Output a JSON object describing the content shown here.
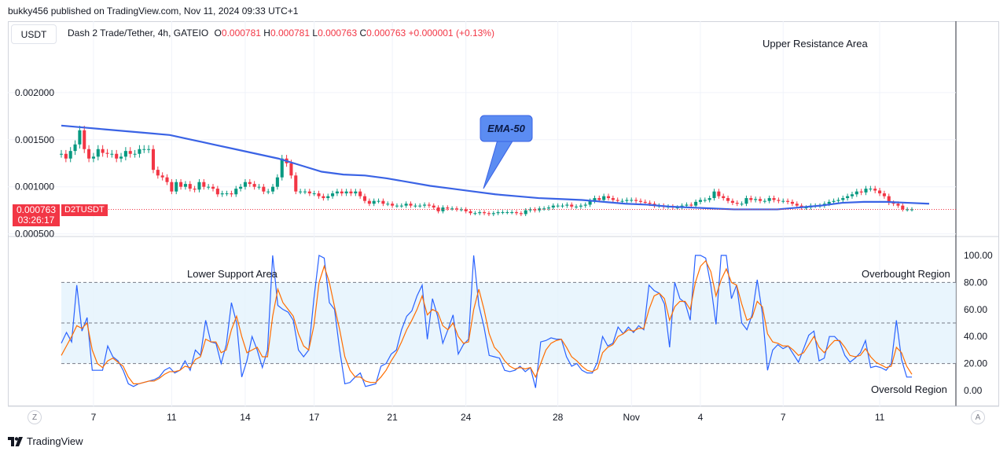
{
  "header": {
    "publish_line": "bukky456 published on TradingView.com, Nov 11, 2024 09:33 UTC+1"
  },
  "toolbar": {
    "currency": "USDT"
  },
  "legend": {
    "symbol": "Dash 2 Trade/Tether, 4h, GATEIO",
    "o_label": "O",
    "o": "0.000781",
    "h_label": "H",
    "h": "0.000781",
    "l_label": "L",
    "l": "0.000763",
    "c_label": "C",
    "c": "0.000763",
    "change": "+0.000001 (+0.13%)"
  },
  "badges": {
    "price": "0.000763",
    "countdown": "03:26:17",
    "ticker": "D2TUSDT"
  },
  "footer": {
    "logo_text": "TradingView",
    "left_btn": "Z",
    "right_btn": "A"
  },
  "colors": {
    "up": "#089981",
    "down": "#f23645",
    "ema": "#3a63e5",
    "osc_fast": "#2962ff",
    "osc_slow": "#ff6d00",
    "band": "#e3f2fd"
  },
  "chart_data": [
    {
      "type": "candlestick",
      "title": "",
      "ylim": [
        0.00048,
        0.00275
      ],
      "y_ticks": [
        0.0005,
        0.001,
        0.0015,
        0.002
      ],
      "y_tick_labels": [
        "0.000500",
        "0.001000",
        "0.001500",
        "0.002000"
      ],
      "x_tick_labels": [
        "7",
        "11",
        "14",
        "17",
        "21",
        "24",
        "28",
        "Nov",
        "4",
        "7",
        "11"
      ],
      "x_tick_index": [
        7,
        24,
        40,
        55,
        72,
        88,
        108,
        124,
        139,
        157,
        178
      ],
      "annotations": [
        "Upper Resistance Area",
        "EMA-50"
      ],
      "close_series": [
        0.00135,
        0.0013,
        0.00138,
        0.00145,
        0.0016,
        0.0014,
        0.0013,
        0.00132,
        0.0014,
        0.00136,
        0.00135,
        0.00135,
        0.0013,
        0.00132,
        0.00138,
        0.00135,
        0.00135,
        0.0014,
        0.0014,
        0.0014,
        0.00118,
        0.00112,
        0.0011,
        0.00105,
        0.00095,
        0.00105,
        0.001,
        0.00103,
        0.00098,
        0.00097,
        0.00105,
        0.001,
        0.001,
        0.00098,
        0.00092,
        0.00093,
        0.00093,
        0.00092,
        0.00098,
        0.001,
        0.00105,
        0.00103,
        0.001,
        0.001,
        0.00095,
        0.00095,
        0.001,
        0.0011,
        0.0013,
        0.00125,
        0.00112,
        0.00095,
        0.00095,
        0.00095,
        0.00093,
        0.00093,
        0.0009,
        0.00088,
        0.0009,
        0.00093,
        0.00095,
        0.00093,
        0.00095,
        0.00093,
        0.00095,
        0.0009,
        0.00085,
        0.00082,
        0.00085,
        0.00085,
        0.00082,
        0.00082,
        0.0008,
        0.0008,
        0.0008,
        0.00082,
        0.0008,
        0.0008,
        0.0008,
        0.00081,
        0.0008,
        0.00078,
        0.00074,
        0.00078,
        0.00077,
        0.00077,
        0.00076,
        0.00076,
        0.00074,
        0.00072,
        0.00072,
        0.00073,
        0.00072,
        0.00071,
        0.00072,
        0.00073,
        0.00073,
        0.00073,
        0.00073,
        0.00072,
        0.00071,
        0.00075,
        0.00076,
        0.00075,
        0.00077,
        0.00077,
        0.00078,
        0.0008,
        0.0008,
        0.0008,
        0.00081,
        0.00079,
        0.00079,
        0.0008,
        0.00081,
        0.00085,
        0.00088,
        0.00086,
        0.0009,
        0.00088,
        0.00086,
        0.00085,
        0.00085,
        0.00086,
        0.00086,
        0.00085,
        0.00084,
        0.00083,
        0.00082,
        0.0008,
        0.0008,
        0.00079,
        0.00079,
        0.00078,
        0.00078,
        0.0008,
        0.00081,
        0.0008,
        0.00084,
        0.00086,
        0.00086,
        0.00088,
        0.00095,
        0.0009,
        0.00088,
        0.00085,
        0.00083,
        0.00082,
        0.00082,
        0.00088,
        0.00086,
        0.00087,
        0.00085,
        0.00085,
        0.00088,
        0.00086,
        0.00085,
        0.00085,
        0.00084,
        0.00082,
        0.0008,
        0.00078,
        0.00078,
        0.0008,
        0.0008,
        0.0008,
        0.00082,
        0.00084,
        0.00085,
        0.00086,
        0.00088,
        0.0009,
        0.00092,
        0.00095,
        0.00094,
        0.00098,
        0.00098,
        0.00096,
        0.00093,
        0.0009,
        0.00083,
        0.00082,
        0.0008,
        0.00076,
        0.00076,
        0.00076
      ],
      "ema_50": [
        0.00165,
        0.00163,
        0.00161,
        0.00159,
        0.00157,
        0.00155,
        0.0015,
        0.00145,
        0.0014,
        0.00135,
        0.0013,
        0.00123,
        0.00116,
        0.00113,
        0.00112,
        0.00109,
        0.00105,
        0.00101,
        0.00098,
        0.00095,
        0.00092,
        0.0009,
        0.00088,
        0.00087,
        0.00086,
        0.00084,
        0.00082,
        0.00081,
        0.00079,
        0.00078,
        0.00077,
        0.00076,
        0.00076,
        0.00076,
        0.00078,
        0.0008,
        0.00083,
        0.00084,
        0.00084,
        0.00083,
        0.00082
      ],
      "ema_label": "EMA-50"
    },
    {
      "type": "line",
      "title": "",
      "ylim": [
        0,
        100
      ],
      "y_ticks": [
        0,
        20,
        40,
        60,
        80,
        100
      ],
      "y_tick_labels": [
        "0.00",
        "20.00",
        "40.00",
        "60.00",
        "80.00",
        "100.00"
      ],
      "band": [
        20,
        80
      ],
      "midline": 50,
      "annotations": [
        "Lower Support Area",
        "Overbought Region",
        "Oversold Region"
      ],
      "series": [
        {
          "values": [
            35,
            43,
            36,
            78,
            44,
            54,
            15,
            15,
            15,
            33,
            25,
            22,
            15,
            5,
            3,
            5,
            6,
            7,
            8,
            10,
            15,
            17,
            13,
            15,
            22,
            15,
            30,
            26,
            52,
            36,
            35,
            20,
            34,
            65,
            50,
            10,
            22,
            40,
            30,
            17,
            30,
            100,
            63,
            60,
            58,
            52,
            30,
            25,
            30,
            68,
            100,
            98,
            65,
            60,
            30,
            5,
            6,
            10,
            13,
            3,
            4,
            5,
            18,
            20,
            27,
            30,
            45,
            55,
            59,
            70,
            78,
            38,
            68,
            55,
            35,
            45,
            56,
            27,
            34,
            38,
            100,
            63,
            47,
            26,
            25,
            24,
            15,
            14,
            15,
            18,
            14,
            17,
            2,
            36,
            37,
            39,
            38,
            38,
            25,
            18,
            20,
            15,
            13,
            13,
            21,
            40,
            33,
            35,
            47,
            42,
            47,
            43,
            48,
            45,
            78,
            74,
            72,
            64,
            32,
            80,
            68,
            65,
            52,
            100,
            100,
            98,
            78,
            49,
            100,
            100,
            68,
            78,
            50,
            45,
            56,
            82,
            57,
            15,
            30,
            34,
            31,
            33,
            27,
            21,
            31,
            41,
            44,
            22,
            24,
            40,
            40,
            36,
            26,
            21,
            24,
            28,
            37,
            17,
            18,
            17,
            15,
            20,
            52,
            23,
            10,
            10
          ],
          "color": "#2962ff"
        },
        {
          "values": [
            26,
            33,
            40,
            48,
            46,
            50,
            30,
            20,
            17,
            22,
            24,
            21,
            18,
            10,
            5,
            5,
            6,
            7,
            7,
            9,
            12,
            14,
            14,
            15,
            18,
            17,
            23,
            25,
            38,
            36,
            36,
            28,
            30,
            45,
            55,
            40,
            28,
            30,
            32,
            25,
            25,
            55,
            75,
            65,
            60,
            55,
            42,
            33,
            30,
            48,
            80,
            92,
            80,
            62,
            45,
            25,
            15,
            10,
            10,
            7,
            6,
            6,
            10,
            15,
            22,
            28,
            36,
            45,
            52,
            60,
            70,
            56,
            60,
            58,
            48,
            45,
            50,
            40,
            35,
            36,
            60,
            75,
            60,
            42,
            32,
            28,
            22,
            18,
            16,
            17,
            16,
            17,
            10,
            20,
            30,
            35,
            37,
            38,
            32,
            25,
            22,
            18,
            15,
            14,
            16,
            28,
            32,
            34,
            40,
            42,
            45,
            44,
            46,
            46,
            60,
            70,
            72,
            68,
            52,
            62,
            66,
            66,
            60,
            80,
            92,
            96,
            88,
            70,
            82,
            90,
            80,
            78,
            64,
            52,
            54,
            66,
            62,
            42,
            36,
            35,
            33,
            33,
            30,
            26,
            28,
            34,
            40,
            32,
            28,
            33,
            37,
            37,
            32,
            26,
            25,
            26,
            31,
            25,
            21,
            19,
            17,
            18,
            32,
            28,
            18,
            12
          ],
          "color": "#ff6d00"
        }
      ]
    }
  ]
}
